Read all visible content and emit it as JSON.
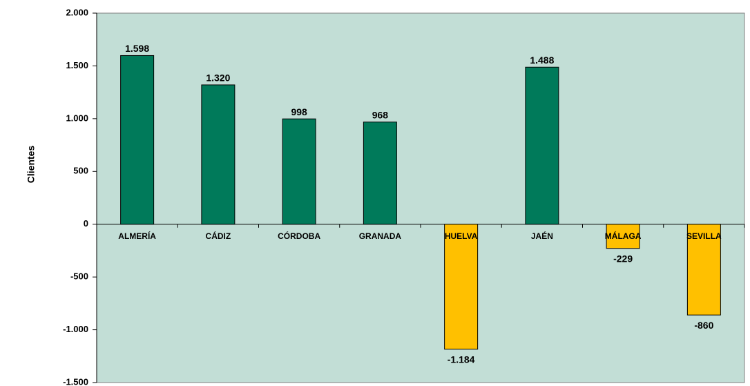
{
  "chart_data": {
    "type": "bar",
    "y_label": "Clientes",
    "categories": [
      "ALMERÍA",
      "CÁDIZ",
      "CÓRDOBA",
      "GRANADA",
      "HUELVA",
      "JAÉN",
      "MÁLAGA",
      "SEVILLA"
    ],
    "values": [
      1598,
      1320,
      998,
      968,
      -1184,
      1488,
      -229,
      -860
    ],
    "value_labels": [
      "1.598",
      "1.320",
      "998",
      "968",
      "-1.184",
      "1.488",
      "-229",
      "-860"
    ],
    "colors": [
      "#007A5A",
      "#007A5A",
      "#007A5A",
      "#007A5A",
      "#FFC000",
      "#007A5A",
      "#FFC000",
      "#FFC000"
    ],
    "ylim": [
      -1500,
      2000
    ],
    "yticks": [
      {
        "value": 2000,
        "label": "2.000"
      },
      {
        "value": 1500,
        "label": "1.500"
      },
      {
        "value": 1000,
        "label": "1.000"
      },
      500,
      0,
      -500,
      {
        "value": -1000,
        "label": "-1.000"
      },
      {
        "value": -1500,
        "label": "-1.500"
      }
    ],
    "background": "#C2DED6"
  }
}
